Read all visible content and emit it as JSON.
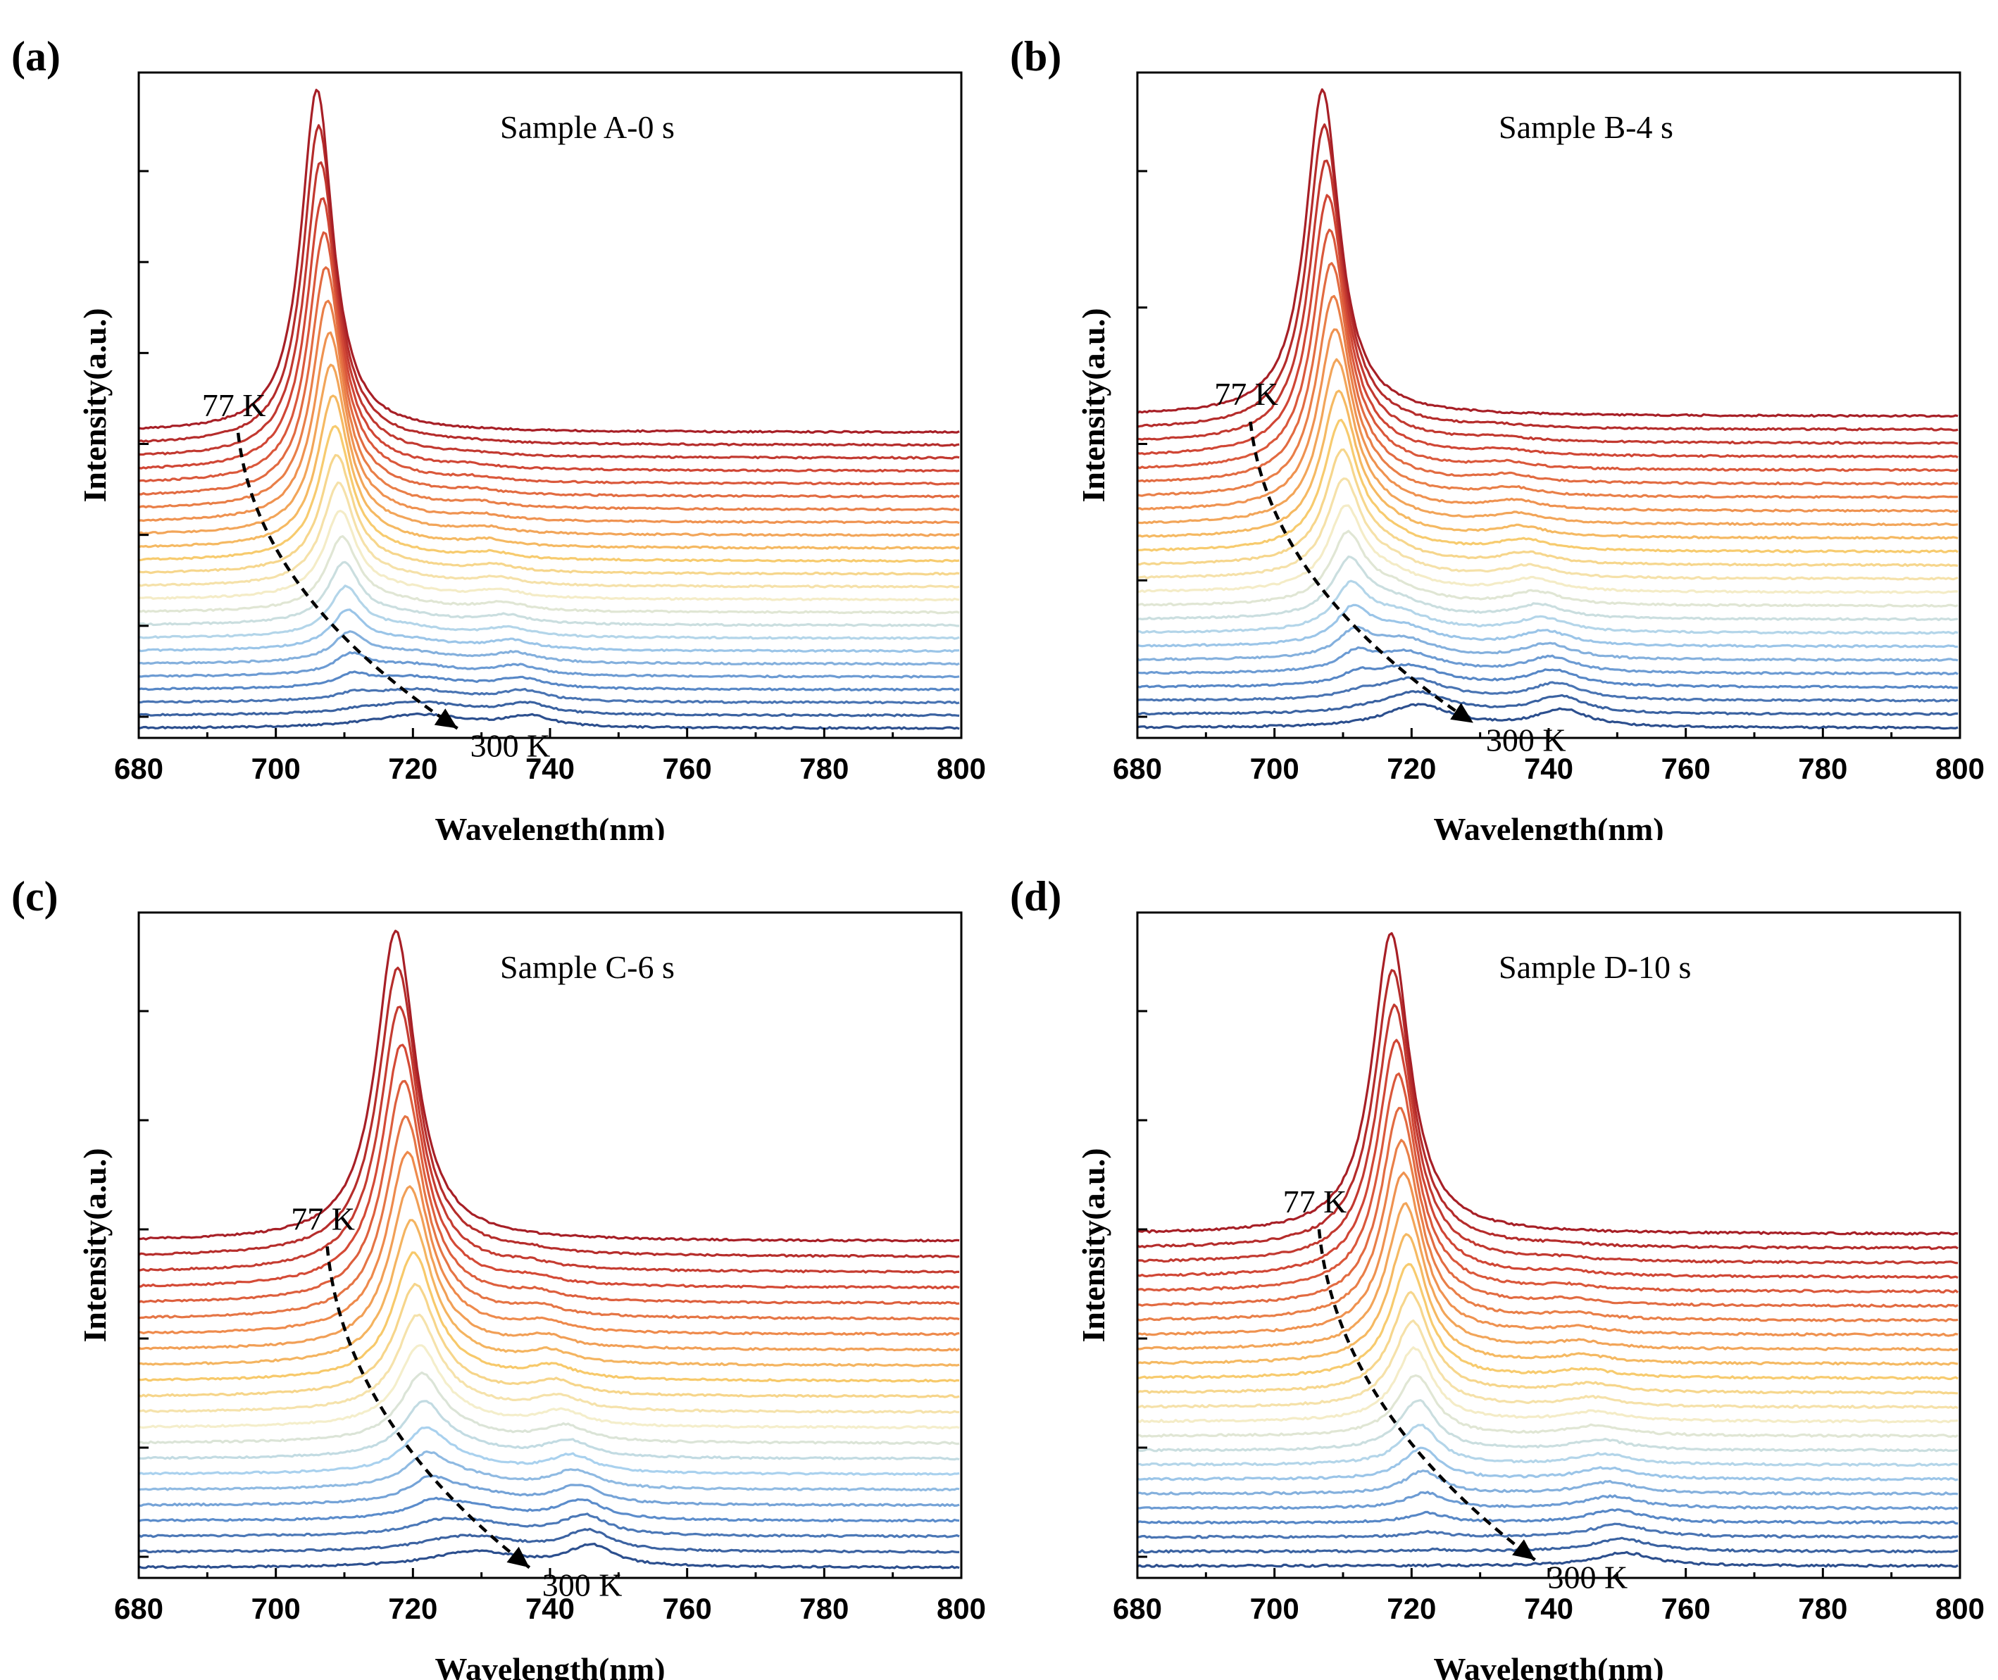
{
  "figure": {
    "colors": {
      "cold_blue": "#2c4f8e",
      "mid_blue": "#5b8ccb",
      "light_blue": "#a9d1ee",
      "pale": "#f4eecb",
      "yellow": "#f7c96a",
      "orange": "#ee8a4c",
      "red": "#d44a36",
      "dark_red": "#a71f26",
      "axis": "#000000",
      "arrow": "#000000"
    }
  },
  "chart_data": [
    {
      "type": "line",
      "panel": "(a)",
      "title": "Sample A-0 s",
      "xlabel": "Wavelength(nm)",
      "ylabel": "Intensity(a.u.)",
      "xlim": [
        680,
        800
      ],
      "x_ticks": [
        "680",
        "700",
        "720",
        "740",
        "760",
        "780",
        "800"
      ],
      "y_ticks": 7,
      "temperature_start": "77 K",
      "temperature_end": "300 K",
      "n_curves": 24,
      "offset_step": 0.27,
      "series_rule": "curves stacked bottom (300 K) to top (77 K); peak center and amplitude interpolated between low-temperature and high-temperature spectra",
      "low_temp_peaks": [
        {
          "center": 706,
          "amplitude": 7.2,
          "width": 2.8
        }
      ],
      "high_temp_peaks": [
        {
          "center": 721,
          "amplitude": 0.28,
          "width": 9.0
        },
        {
          "center": 737,
          "amplitude": 0.22,
          "width": 4.0
        }
      ],
      "arrow_77K": [
        694.5,
        6.2
      ],
      "arrow_300K": [
        726.5,
        0.0
      ]
    },
    {
      "type": "line",
      "panel": "(b)",
      "title": "Sample B-4 s",
      "xlabel": "Wavelength(nm)",
      "ylabel": "Intensity(a.u.)",
      "xlim": [
        680,
        800
      ],
      "x_ticks": [
        "680",
        "700",
        "720",
        "740",
        "760",
        "780",
        "800"
      ],
      "y_ticks": 5,
      "temperature_start": "77 K",
      "temperature_end": "300 K",
      "n_curves": 24,
      "offset_step": 0.27,
      "series_rule": "curves stacked bottom (300 K) to top (77 K); peak center and amplitude interpolated between low-temperature and high-temperature spectra",
      "low_temp_peaks": [
        {
          "center": 707,
          "amplitude": 6.5,
          "width": 3.0
        }
      ],
      "high_temp_peaks": [
        {
          "center": 721,
          "amplitude": 0.45,
          "width": 6.0
        },
        {
          "center": 742,
          "amplitude": 0.35,
          "width": 4.5
        }
      ],
      "arrow_77K": [
        696.5,
        6.1
      ],
      "arrow_300K": [
        729.0,
        0.1
      ]
    },
    {
      "type": "line",
      "panel": "(c)",
      "title": "Sample C-6 s",
      "xlabel": "Wavelength(nm)",
      "ylabel": "Intensity(a.u.)",
      "xlim": [
        680,
        800
      ],
      "x_ticks": [
        "680",
        "700",
        "720",
        "740",
        "760",
        "780",
        "800"
      ],
      "y_ticks": 6,
      "temperature_start": "77 K",
      "temperature_end": "300 K",
      "n_curves": 22,
      "offset_step": 0.3,
      "series_rule": "curves stacked bottom (300 K) to top (77 K); peak center and amplitude interpolated between low-temperature and high-temperature spectra",
      "low_temp_peaks": [
        {
          "center": 717.5,
          "amplitude": 6.0,
          "width": 3.5
        }
      ],
      "high_temp_peaks": [
        {
          "center": 729,
          "amplitude": 0.3,
          "width": 8.0
        },
        {
          "center": 746,
          "amplitude": 0.4,
          "width": 4.0
        }
      ],
      "arrow_77K": [
        707.5,
        6.2
      ],
      "arrow_300K": [
        737.0,
        0.0
      ]
    },
    {
      "type": "line",
      "panel": "(d)",
      "title": "Sample D-10 s",
      "xlabel": "Wavelength(nm)",
      "ylabel": "Intensity(a.u.)",
      "xlim": [
        680,
        800
      ],
      "x_ticks": [
        "680",
        "700",
        "720",
        "740",
        "760",
        "780",
        "800"
      ],
      "y_ticks": 6,
      "temperature_start": "77 K",
      "temperature_end": "300 K",
      "n_curves": 24,
      "offset_step": 0.24,
      "series_rule": "curves stacked bottom (300 K) to top (77 K); peak center and amplitude interpolated between low-temperature and high-temperature spectra",
      "low_temp_peaks": [
        {
          "center": 717,
          "amplitude": 5.0,
          "width": 3.3
        }
      ],
      "high_temp_peaks": [
        {
          "center": 751,
          "amplitude": 0.22,
          "width": 5.0
        }
      ],
      "arrow_77K": [
        706.5,
        5.6
      ],
      "arrow_300K": [
        738.0,
        0.1
      ]
    }
  ]
}
